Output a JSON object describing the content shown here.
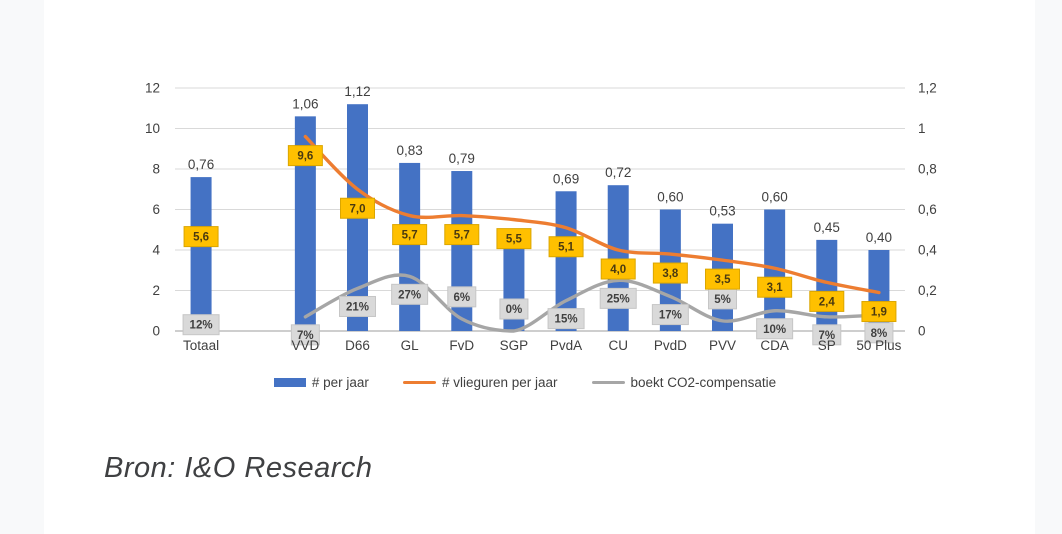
{
  "page": {
    "source": "Bron: I&O Research"
  },
  "legend": {
    "items": [
      {
        "label": "# per jaar",
        "type": "bar",
        "color": "#4472c4"
      },
      {
        "label": "# vlieguren per jaar",
        "type": "line",
        "color": "#ed7d31"
      },
      {
        "label": "boekt CO2-compensatie",
        "type": "line",
        "color": "#a6a6a6"
      }
    ]
  },
  "chart_data": {
    "type": "bar",
    "title": "",
    "categories": [
      "Totaal",
      "VVD",
      "D66",
      "GL",
      "FvD",
      "SGP",
      "PvdA",
      "CU",
      "PvdD",
      "PVV",
      "CDA",
      "SP",
      "50 Plus"
    ],
    "detached_first_category": true,
    "left_axis": {
      "min": 0,
      "max": 12,
      "tick_values": [
        0,
        2,
        4,
        6,
        8,
        10,
        12
      ],
      "tick_labels": [
        "0",
        "2",
        "4",
        "6",
        "8",
        "10",
        "12"
      ]
    },
    "right_axis": {
      "min": 0,
      "max": 1.2,
      "tick_values": [
        0,
        0.2,
        0.4,
        0.6,
        0.8,
        1,
        1.2
      ],
      "tick_labels": [
        "0",
        "0,2",
        "0,4",
        "0,6",
        "0,8",
        "1",
        "1,2"
      ]
    },
    "grid": true,
    "legend_position": "bottom",
    "series": [
      {
        "name": "# per jaar",
        "type": "bar",
        "axis": "right",
        "color": "#4472c4",
        "values": [
          0.76,
          1.06,
          1.12,
          0.83,
          0.79,
          0.44,
          0.69,
          0.72,
          0.6,
          0.53,
          0.6,
          0.45,
          0.4
        ],
        "labels": [
          "0,76",
          "1,06",
          "1,12",
          "0,83",
          "0,79",
          "",
          "0,69",
          "0,72",
          "0,60",
          "0,53",
          "0,60",
          "0,45",
          "0,40"
        ]
      },
      {
        "name": "# vlieguren per jaar",
        "type": "line",
        "axis": "left",
        "color": "#ed7d31",
        "line_starts_at_index": 1,
        "values": [
          5.6,
          9.6,
          7.0,
          5.7,
          5.7,
          5.5,
          5.1,
          4.0,
          3.8,
          3.5,
          3.1,
          2.4,
          1.9
        ],
        "labels": [
          "5,6",
          "9,6",
          "7,0",
          "5,7",
          "5,7",
          "5,5",
          "5,1",
          "4,0",
          "3,8",
          "3,5",
          "3,1",
          "2,4",
          "1,9"
        ],
        "label_style": {
          "fill": "#ffc000",
          "border": "#dba600",
          "text": "#4a3a10"
        }
      },
      {
        "name": "boekt CO2-compensatie",
        "type": "line",
        "axis": "left_percent_div10",
        "color": "#a6a6a6",
        "line_starts_at_index": 1,
        "values_percent": [
          12,
          7,
          21,
          27,
          6,
          0,
          15,
          25,
          17,
          5,
          10,
          7,
          8
        ],
        "labels": [
          "12%",
          "7%",
          "21%",
          "27%",
          "6%",
          "0%",
          "15%",
          "25%",
          "17%",
          "5%",
          "10%",
          "7%",
          "8%"
        ],
        "label_positions": [
          "below",
          "below",
          "below",
          "below",
          "above",
          "above",
          "below",
          "below",
          "below",
          "above",
          "below",
          "below",
          "below"
        ],
        "label_style": {
          "fill": "#d9d9d9",
          "border": "#c6c6c6",
          "text": "#404040"
        }
      }
    ]
  }
}
